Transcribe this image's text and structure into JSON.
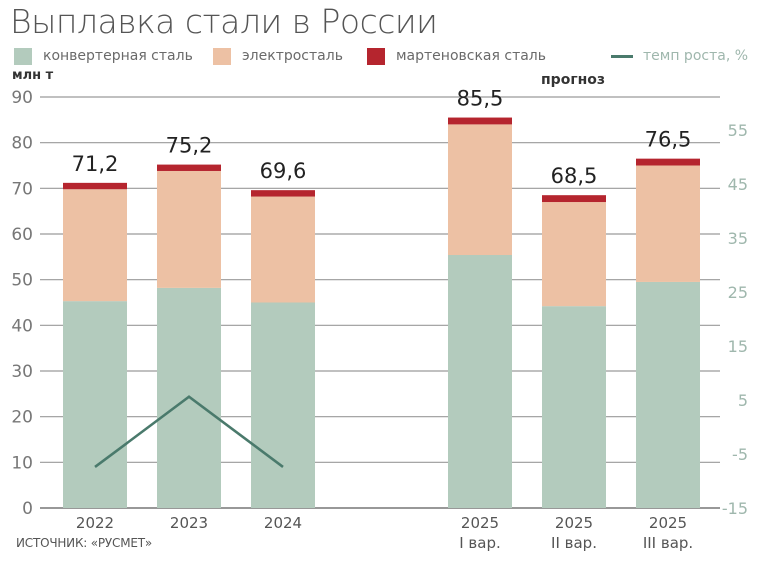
{
  "title": "Выплавка стали в России",
  "legend": [
    {
      "label": "конвертерная сталь",
      "color": "#b3cbbd",
      "type": "box"
    },
    {
      "label": "электросталь",
      "color": "#edc1a4",
      "type": "box"
    },
    {
      "label": "мартеновская сталь",
      "color": "#b5252e",
      "type": "box"
    },
    {
      "label": "темп роста, %",
      "color": "#4a7a6c",
      "type": "line"
    }
  ],
  "unit_label": "млн т",
  "forecast_label": "прогноз",
  "source": "ИСТОЧНИК: «РУСМЕТ»",
  "chart_data": {
    "type": "bar",
    "stacked": true,
    "title": "Выплавка стали в России",
    "ylabel": "млн т",
    "ylabel_right": "темп роста, %",
    "categories": [
      "2022",
      "2023",
      "2024",
      "2025 I вар.",
      "2025 II вар.",
      "2025 III вар."
    ],
    "category_labels": [
      {
        "line1": "2022",
        "line2": ""
      },
      {
        "line1": "2023",
        "line2": ""
      },
      {
        "line1": "2024",
        "line2": ""
      },
      {
        "line1": "2025",
        "line2": "I вар."
      },
      {
        "line1": "2025",
        "line2": "II вар."
      },
      {
        "line1": "2025",
        "line2": "III вар."
      }
    ],
    "series": [
      {
        "name": "конвертерная сталь",
        "color": "#b3cbbd",
        "values": [
          45.3,
          48.2,
          45.0,
          55.4,
          44.2,
          49.5
        ]
      },
      {
        "name": "электросталь",
        "color": "#edc1a4",
        "values": [
          24.5,
          25.6,
          23.2,
          28.6,
          22.8,
          25.5
        ]
      },
      {
        "name": "мартеновская сталь",
        "color": "#b5252e",
        "values": [
          1.4,
          1.4,
          1.4,
          1.5,
          1.5,
          1.5
        ]
      }
    ],
    "totals": [
      "71,2",
      "75,2",
      "69,6",
      "85,5",
      "68,5",
      "76,5"
    ],
    "totals_numeric": [
      71.2,
      75.2,
      69.6,
      85.5,
      68.5,
      76.5
    ],
    "line_series": {
      "name": "темп роста, %",
      "color": "#4a7a6c",
      "axis": "right",
      "categories": [
        "2022",
        "2023",
        "2024"
      ],
      "values": [
        -7.4,
        5.6,
        -7.4
      ]
    },
    "ylim": [
      0,
      90
    ],
    "yticks": [
      0,
      10,
      20,
      30,
      40,
      50,
      60,
      70,
      80,
      90
    ],
    "ylim_right": [
      -15,
      55
    ],
    "yticks_right": [
      -15,
      -5,
      5,
      15,
      25,
      35,
      45,
      55
    ],
    "grid": true,
    "legend_position": "top",
    "annotation": "прогноз"
  }
}
